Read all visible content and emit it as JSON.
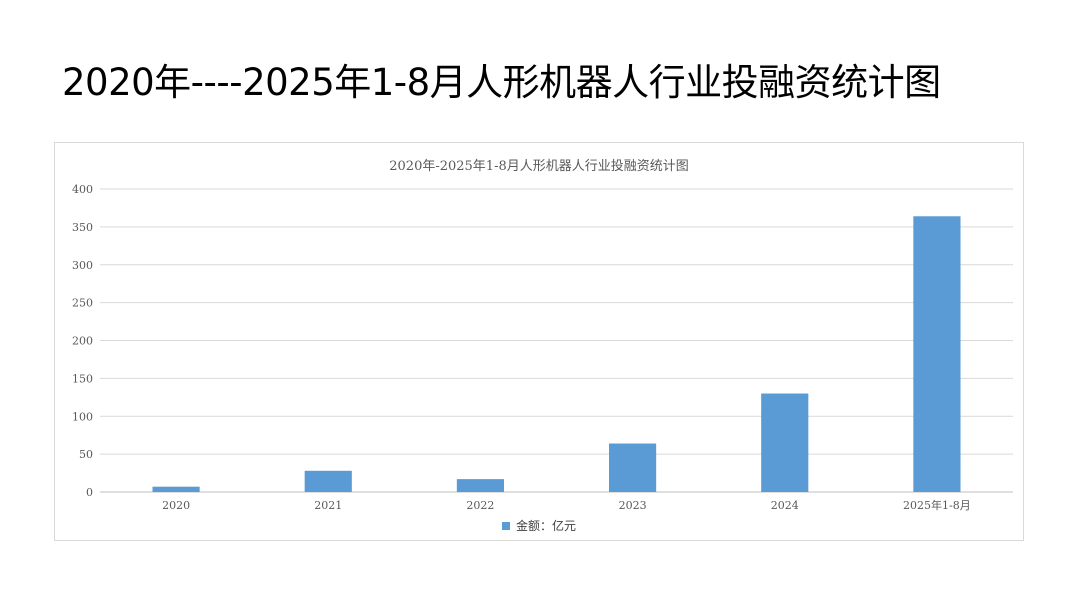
{
  "page": {
    "title": "2020年----2025年1-8月人形机器人行业投融资统计图"
  },
  "chart_data": {
    "type": "bar",
    "title": "2020年-2025年1-8月人形机器人行业投融资统计图",
    "categories": [
      "2020",
      "2021",
      "2022",
      "2023",
      "2024",
      "2025年1-8月"
    ],
    "series": [
      {
        "name": "金额：亿元",
        "values": [
          7,
          28,
          17,
          64,
          130,
          364
        ],
        "color": "#5b9bd5"
      }
    ],
    "ylim": [
      0,
      400
    ],
    "yticks": [
      0,
      50,
      100,
      150,
      200,
      250,
      300,
      350,
      400
    ],
    "xlabel": "",
    "ylabel": "",
    "grid": true,
    "legend_position": "bottom"
  }
}
